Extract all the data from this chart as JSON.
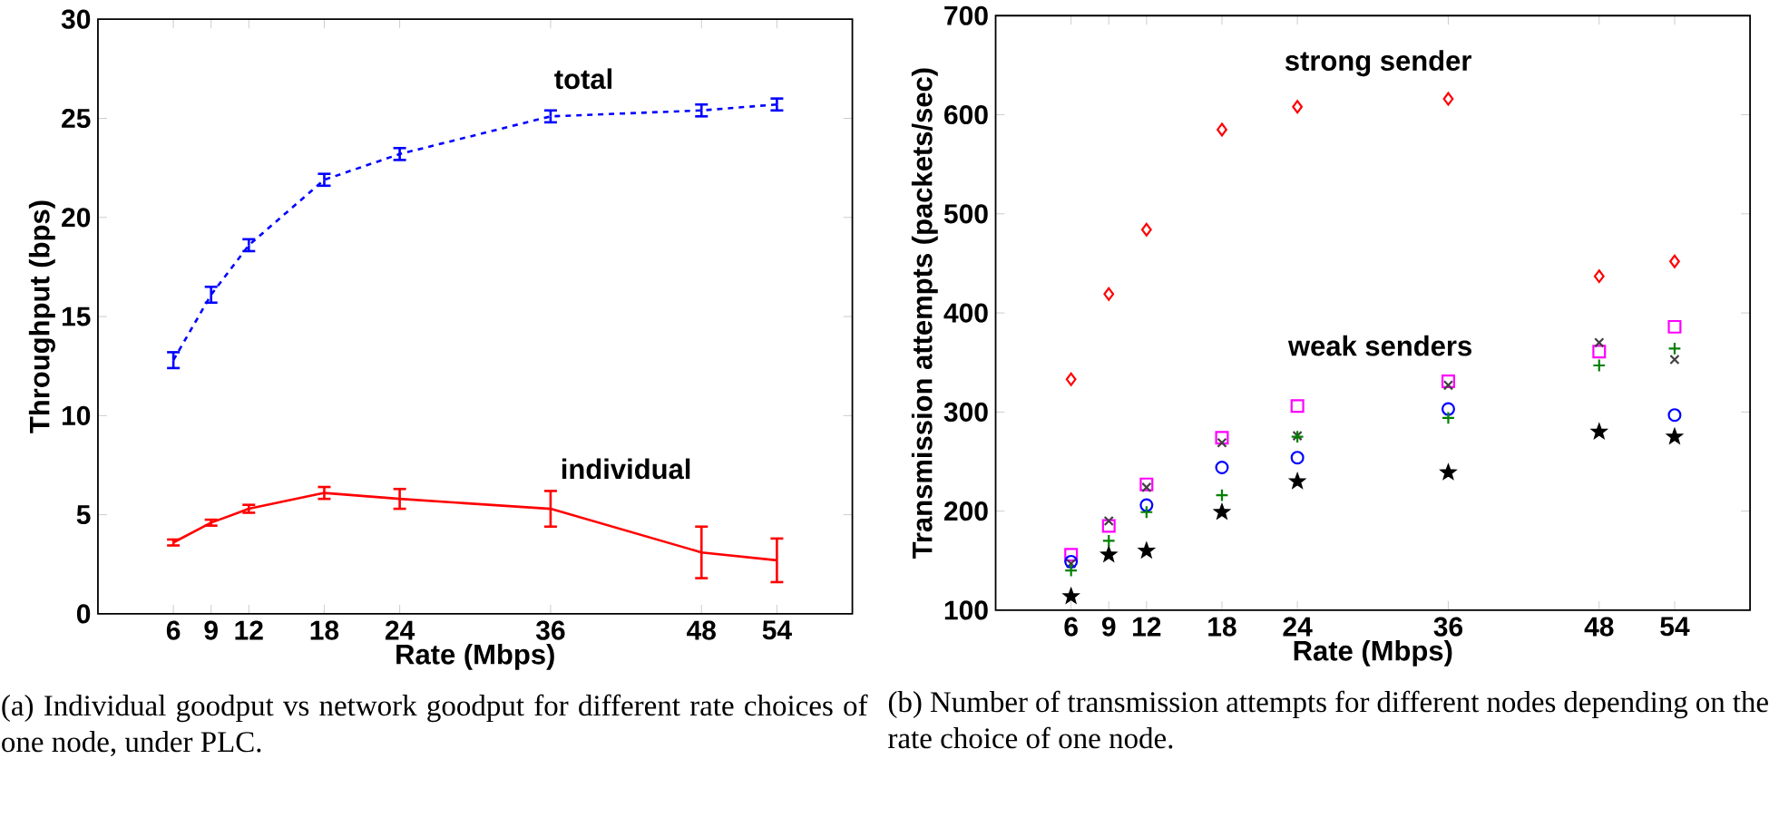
{
  "chart_data": [
    {
      "type": "line",
      "xlabel": "Rate (Mbps)",
      "ylabel": "Throughput (bps)",
      "x": [
        6,
        9,
        12,
        18,
        24,
        36,
        48,
        54
      ],
      "xlim": [
        0,
        60
      ],
      "xticks": [
        6,
        9,
        12,
        18,
        24,
        36,
        48,
        54
      ],
      "ylim": [
        0,
        30
      ],
      "yticks": [
        0,
        5,
        10,
        15,
        20,
        25,
        30
      ],
      "grid": false,
      "marker": "none",
      "series": [
        {
          "name": "total",
          "color": "#0000ff",
          "line_style": "dashed",
          "values": [
            12.8,
            16.1,
            18.6,
            21.9,
            23.2,
            25.1,
            25.4,
            25.7
          ],
          "errors": [
            0.4,
            0.4,
            0.3,
            0.3,
            0.3,
            0.3,
            0.3,
            0.3
          ]
        },
        {
          "name": "individual",
          "color": "#ff0000",
          "line_style": "solid",
          "values": [
            3.6,
            4.6,
            5.3,
            6.1,
            5.8,
            5.3,
            3.1,
            2.7
          ],
          "errors": [
            0.15,
            0.15,
            0.2,
            0.3,
            0.5,
            0.9,
            1.3,
            1.1
          ]
        }
      ],
      "annotations": [
        "(a) Individual goodput vs network goodput for different rate choices of one node, under PLC."
      ]
    },
    {
      "type": "scatter",
      "xlabel": "Rate (Mbps)",
      "ylabel": "Transmission attempts (packets/sec)",
      "x": [
        6,
        9,
        12,
        18,
        24,
        36,
        48,
        54
      ],
      "xlim": [
        0,
        60
      ],
      "xticks": [
        6,
        9,
        12,
        18,
        24,
        36,
        48,
        54
      ],
      "ylim": [
        100,
        700
      ],
      "yticks": [
        100,
        200,
        300,
        400,
        500,
        600,
        700
      ],
      "grid": false,
      "series": [
        {
          "name": "strong sender",
          "color": "#ff0000",
          "marker": "diamond",
          "values": [
            333,
            419,
            484,
            585,
            608,
            616,
            437,
            452
          ]
        },
        {
          "color": "#ff00ff",
          "marker": "square",
          "values": [
            156,
            185,
            227,
            274,
            306,
            331,
            361,
            386
          ]
        },
        {
          "color": "#404040",
          "marker": "cross",
          "values": [
            147,
            190,
            224,
            269,
            276,
            327,
            370,
            353
          ]
        },
        {
          "color": "#0000ff",
          "marker": "circle",
          "values": [
            149,
            null,
            206,
            244,
            254,
            303,
            null,
            297
          ]
        },
        {
          "color": "#008000",
          "marker": "plus",
          "values": [
            140,
            170,
            199,
            216,
            275,
            294,
            347,
            364
          ]
        },
        {
          "color": "#000000",
          "marker": "star",
          "values": [
            114,
            156,
            160,
            199,
            230,
            239,
            280,
            275
          ]
        }
      ],
      "annotations": [
        "weak senders",
        "(b) Number of transmission attempts for different nodes depending on the rate choice of one node."
      ]
    }
  ]
}
